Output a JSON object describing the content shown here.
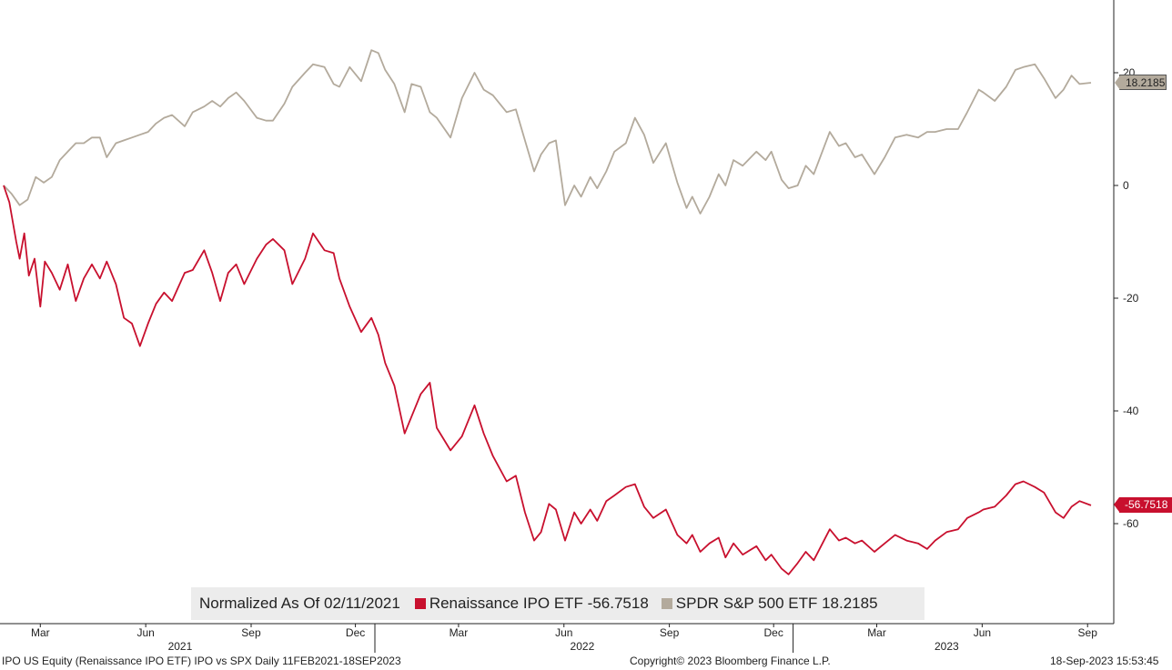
{
  "chart_data": {
    "type": "line",
    "title": "Normalized As Of 02/11/2021",
    "xlabel": "",
    "ylabel": "",
    "ylim": [
      -75,
      33
    ],
    "yticks": [
      20,
      0,
      -20,
      -40,
      -60
    ],
    "x_range": [
      "2021-02-11",
      "2023-09-18"
    ],
    "x_ticks": [
      {
        "label": "Mar",
        "date": "2021-03-15"
      },
      {
        "label": "Jun",
        "date": "2021-06-15"
      },
      {
        "label": "Sep",
        "date": "2021-09-15"
      },
      {
        "label": "Dec",
        "date": "2021-12-15"
      },
      {
        "label": "Mar",
        "date": "2022-03-15"
      },
      {
        "label": "Jun",
        "date": "2022-06-15"
      },
      {
        "label": "Sep",
        "date": "2022-09-15"
      },
      {
        "label": "Dec",
        "date": "2022-12-15"
      },
      {
        "label": "Mar",
        "date": "2023-03-15"
      },
      {
        "label": "Jun",
        "date": "2023-06-15"
      },
      {
        "label": "Sep",
        "date": "2023-09-15"
      }
    ],
    "year_labels": [
      {
        "label": "2021",
        "date": "2021-07-15"
      },
      {
        "label": "2022",
        "date": "2022-07-01"
      },
      {
        "label": "2023",
        "date": "2023-05-15"
      }
    ],
    "year_dividers": [
      "2022-01-01",
      "2023-01-01"
    ],
    "series": [
      {
        "name": "SPDR S&P 500 ETF",
        "color": "#b3aa9c",
        "last_value": "18.2185",
        "points": [
          [
            "2021-02-11",
            0
          ],
          [
            "2021-02-18",
            -1.5
          ],
          [
            "2021-02-25",
            -3.5
          ],
          [
            "2021-03-04",
            -2.5
          ],
          [
            "2021-03-11",
            1.5
          ],
          [
            "2021-03-18",
            0.5
          ],
          [
            "2021-03-25",
            1.5
          ],
          [
            "2021-04-01",
            4.5
          ],
          [
            "2021-04-08",
            6
          ],
          [
            "2021-04-15",
            7.5
          ],
          [
            "2021-04-22",
            7.5
          ],
          [
            "2021-04-29",
            8.5
          ],
          [
            "2021-05-06",
            8.5
          ],
          [
            "2021-05-12",
            5
          ],
          [
            "2021-05-20",
            7.5
          ],
          [
            "2021-05-27",
            8
          ],
          [
            "2021-06-03",
            8.5
          ],
          [
            "2021-06-10",
            9
          ],
          [
            "2021-06-17",
            9.5
          ],
          [
            "2021-06-24",
            11
          ],
          [
            "2021-07-01",
            12
          ],
          [
            "2021-07-08",
            12.5
          ],
          [
            "2021-07-19",
            10.5
          ],
          [
            "2021-07-26",
            13
          ],
          [
            "2021-08-05",
            14
          ],
          [
            "2021-08-12",
            15
          ],
          [
            "2021-08-19",
            14
          ],
          [
            "2021-08-26",
            15.5
          ],
          [
            "2021-09-02",
            16.5
          ],
          [
            "2021-09-09",
            15
          ],
          [
            "2021-09-20",
            12
          ],
          [
            "2021-09-28",
            11.5
          ],
          [
            "2021-10-04",
            11.5
          ],
          [
            "2021-10-14",
            14.5
          ],
          [
            "2021-10-21",
            17.5
          ],
          [
            "2021-11-01",
            20
          ],
          [
            "2021-11-08",
            21.5
          ],
          [
            "2021-11-18",
            21
          ],
          [
            "2021-11-26",
            18
          ],
          [
            "2021-12-01",
            17.5
          ],
          [
            "2021-12-10",
            21
          ],
          [
            "2021-12-20",
            18.5
          ],
          [
            "2021-12-29",
            24
          ],
          [
            "2022-01-04",
            23.5
          ],
          [
            "2022-01-10",
            20.5
          ],
          [
            "2022-01-18",
            18
          ],
          [
            "2022-01-27",
            13
          ],
          [
            "2022-02-02",
            18
          ],
          [
            "2022-02-10",
            17.5
          ],
          [
            "2022-02-18",
            13
          ],
          [
            "2022-02-24",
            12
          ],
          [
            "2022-03-08",
            8.5
          ],
          [
            "2022-03-18",
            15.5
          ],
          [
            "2022-03-29",
            20
          ],
          [
            "2022-04-06",
            17
          ],
          [
            "2022-04-14",
            16
          ],
          [
            "2022-04-26",
            13
          ],
          [
            "2022-05-04",
            13.5
          ],
          [
            "2022-05-12",
            8
          ],
          [
            "2022-05-20",
            2.5
          ],
          [
            "2022-05-26",
            5.5
          ],
          [
            "2022-06-02",
            7.5
          ],
          [
            "2022-06-08",
            8
          ],
          [
            "2022-06-16",
            -3.5
          ],
          [
            "2022-06-24",
            0
          ],
          [
            "2022-06-30",
            -2
          ],
          [
            "2022-07-08",
            1.5
          ],
          [
            "2022-07-14",
            -0.5
          ],
          [
            "2022-07-22",
            2.5
          ],
          [
            "2022-07-29",
            6
          ],
          [
            "2022-08-08",
            7.5
          ],
          [
            "2022-08-16",
            12
          ],
          [
            "2022-08-24",
            9
          ],
          [
            "2022-09-01",
            4
          ],
          [
            "2022-09-12",
            7.5
          ],
          [
            "2022-09-22",
            0.5
          ],
          [
            "2022-09-30",
            -4
          ],
          [
            "2022-10-05",
            -2
          ],
          [
            "2022-10-12",
            -5
          ],
          [
            "2022-10-20",
            -2
          ],
          [
            "2022-10-28",
            2
          ],
          [
            "2022-11-03",
            0
          ],
          [
            "2022-11-10",
            4.5
          ],
          [
            "2022-11-18",
            3.5
          ],
          [
            "2022-11-30",
            6
          ],
          [
            "2022-12-08",
            4.5
          ],
          [
            "2022-12-13",
            6
          ],
          [
            "2022-12-22",
            1
          ],
          [
            "2022-12-28",
            -0.5
          ],
          [
            "2023-01-05",
            0
          ],
          [
            "2023-01-12",
            3.5
          ],
          [
            "2023-01-19",
            2
          ],
          [
            "2023-02-02",
            9.5
          ],
          [
            "2023-02-10",
            7
          ],
          [
            "2023-02-16",
            7.5
          ],
          [
            "2023-02-24",
            5
          ],
          [
            "2023-03-02",
            5.5
          ],
          [
            "2023-03-13",
            2
          ],
          [
            "2023-03-22",
            5
          ],
          [
            "2023-03-31",
            8.5
          ],
          [
            "2023-04-10",
            9
          ],
          [
            "2023-04-20",
            8.5
          ],
          [
            "2023-04-28",
            9.5
          ],
          [
            "2023-05-05",
            9.5
          ],
          [
            "2023-05-15",
            10
          ],
          [
            "2023-05-25",
            10
          ],
          [
            "2023-06-02",
            13
          ],
          [
            "2023-06-12",
            17
          ],
          [
            "2023-06-16",
            16.5
          ],
          [
            "2023-06-26",
            15
          ],
          [
            "2023-07-06",
            17.5
          ],
          [
            "2023-07-14",
            20.5
          ],
          [
            "2023-07-21",
            21
          ],
          [
            "2023-07-31",
            21.5
          ],
          [
            "2023-08-08",
            19
          ],
          [
            "2023-08-18",
            15.5
          ],
          [
            "2023-08-25",
            17
          ],
          [
            "2023-09-01",
            19.5
          ],
          [
            "2023-09-08",
            18
          ],
          [
            "2023-09-18",
            18.2185
          ]
        ]
      },
      {
        "name": "Renaissance IPO ETF",
        "color": "#c8102e",
        "last_value": "-56.7518",
        "points": [
          [
            "2021-02-11",
            0
          ],
          [
            "2021-02-16",
            -3
          ],
          [
            "2021-02-22",
            -10
          ],
          [
            "2021-02-25",
            -13
          ],
          [
            "2021-03-01",
            -8.5
          ],
          [
            "2021-03-05",
            -16
          ],
          [
            "2021-03-10",
            -13
          ],
          [
            "2021-03-15",
            -21.5
          ],
          [
            "2021-03-19",
            -13.5
          ],
          [
            "2021-03-25",
            -15.5
          ],
          [
            "2021-04-01",
            -18.5
          ],
          [
            "2021-04-08",
            -14
          ],
          [
            "2021-04-15",
            -20.5
          ],
          [
            "2021-04-22",
            -16.5
          ],
          [
            "2021-04-29",
            -14
          ],
          [
            "2021-05-06",
            -16.5
          ],
          [
            "2021-05-12",
            -13.5
          ],
          [
            "2021-05-20",
            -17.5
          ],
          [
            "2021-05-27",
            -23.5
          ],
          [
            "2021-06-03",
            -24.5
          ],
          [
            "2021-06-10",
            -28.5
          ],
          [
            "2021-06-17",
            -24.5
          ],
          [
            "2021-06-24",
            -21
          ],
          [
            "2021-07-01",
            -19
          ],
          [
            "2021-07-08",
            -20.5
          ],
          [
            "2021-07-19",
            -15.5
          ],
          [
            "2021-07-26",
            -15
          ],
          [
            "2021-08-05",
            -11.5
          ],
          [
            "2021-08-12",
            -15.5
          ],
          [
            "2021-08-19",
            -20.5
          ],
          [
            "2021-08-26",
            -15.5
          ],
          [
            "2021-09-02",
            -14
          ],
          [
            "2021-09-09",
            -17.5
          ],
          [
            "2021-09-20",
            -13
          ],
          [
            "2021-09-28",
            -10.5
          ],
          [
            "2021-10-04",
            -9.5
          ],
          [
            "2021-10-14",
            -11.5
          ],
          [
            "2021-10-21",
            -17.5
          ],
          [
            "2021-11-01",
            -13
          ],
          [
            "2021-11-08",
            -8.5
          ],
          [
            "2021-11-18",
            -11.5
          ],
          [
            "2021-11-26",
            -12
          ],
          [
            "2021-12-01",
            -16.5
          ],
          [
            "2021-12-10",
            -21.5
          ],
          [
            "2021-12-20",
            -26
          ],
          [
            "2021-12-29",
            -23.5
          ],
          [
            "2022-01-04",
            -26.5
          ],
          [
            "2022-01-10",
            -31.5
          ],
          [
            "2022-01-18",
            -35.5
          ],
          [
            "2022-01-27",
            -44
          ],
          [
            "2022-02-02",
            -41
          ],
          [
            "2022-02-10",
            -37
          ],
          [
            "2022-02-18",
            -35
          ],
          [
            "2022-02-24",
            -43
          ],
          [
            "2022-03-08",
            -47
          ],
          [
            "2022-03-18",
            -44.5
          ],
          [
            "2022-03-29",
            -39
          ],
          [
            "2022-04-06",
            -44
          ],
          [
            "2022-04-14",
            -48
          ],
          [
            "2022-04-26",
            -52.5
          ],
          [
            "2022-05-04",
            -51.5
          ],
          [
            "2022-05-12",
            -58
          ],
          [
            "2022-05-20",
            -63
          ],
          [
            "2022-05-26",
            -61.5
          ],
          [
            "2022-06-02",
            -56.5
          ],
          [
            "2022-06-08",
            -57.5
          ],
          [
            "2022-06-16",
            -63
          ],
          [
            "2022-06-24",
            -58
          ],
          [
            "2022-06-30",
            -60
          ],
          [
            "2022-07-08",
            -57.5
          ],
          [
            "2022-07-14",
            -59.5
          ],
          [
            "2022-07-22",
            -56
          ],
          [
            "2022-07-29",
            -55
          ],
          [
            "2022-08-08",
            -53.5
          ],
          [
            "2022-08-16",
            -53
          ],
          [
            "2022-08-24",
            -57
          ],
          [
            "2022-09-01",
            -59
          ],
          [
            "2022-09-12",
            -57.5
          ],
          [
            "2022-09-22",
            -62
          ],
          [
            "2022-09-30",
            -63.5
          ],
          [
            "2022-10-05",
            -62
          ],
          [
            "2022-10-12",
            -65
          ],
          [
            "2022-10-20",
            -63.5
          ],
          [
            "2022-10-28",
            -62.5
          ],
          [
            "2022-11-03",
            -66
          ],
          [
            "2022-11-10",
            -63.5
          ],
          [
            "2022-11-18",
            -65.5
          ],
          [
            "2022-11-30",
            -64
          ],
          [
            "2022-12-08",
            -66.5
          ],
          [
            "2022-12-13",
            -65.5
          ],
          [
            "2022-12-22",
            -68
          ],
          [
            "2022-12-28",
            -69
          ],
          [
            "2023-01-05",
            -67
          ],
          [
            "2023-01-12",
            -65
          ],
          [
            "2023-01-19",
            -66.5
          ],
          [
            "2023-02-02",
            -61
          ],
          [
            "2023-02-10",
            -63
          ],
          [
            "2023-02-16",
            -62.5
          ],
          [
            "2023-02-24",
            -63.5
          ],
          [
            "2023-03-02",
            -63
          ],
          [
            "2023-03-13",
            -65
          ],
          [
            "2023-03-22",
            -63.5
          ],
          [
            "2023-03-31",
            -62
          ],
          [
            "2023-04-10",
            -63
          ],
          [
            "2023-04-20",
            -63.5
          ],
          [
            "2023-04-28",
            -64.5
          ],
          [
            "2023-05-05",
            -63
          ],
          [
            "2023-05-15",
            -61.5
          ],
          [
            "2023-05-25",
            -61
          ],
          [
            "2023-06-02",
            -59
          ],
          [
            "2023-06-12",
            -58
          ],
          [
            "2023-06-16",
            -57.5
          ],
          [
            "2023-06-26",
            -57
          ],
          [
            "2023-07-06",
            -55
          ],
          [
            "2023-07-14",
            -53
          ],
          [
            "2023-07-21",
            -52.5
          ],
          [
            "2023-07-31",
            -53.5
          ],
          [
            "2023-08-08",
            -54.5
          ],
          [
            "2023-08-18",
            -58
          ],
          [
            "2023-08-25",
            -59
          ],
          [
            "2023-09-01",
            -57
          ],
          [
            "2023-09-08",
            -56
          ],
          [
            "2023-09-18",
            -56.7518
          ]
        ]
      }
    ]
  },
  "legend": {
    "title": "Normalized As Of 02/11/2021",
    "ipo_entry": "Renaissance IPO ETF -56.7518",
    "spx_entry": "SPDR S&P 500 ETF 18.2185"
  },
  "badges": {
    "spx": "18.2185",
    "ipo": "-56.7518"
  },
  "footer": {
    "left": "IPO US Equity (Renaissance IPO ETF) IPO vs SPX  Daily 11FEB2021-18SEP2023",
    "center": "Copyright© 2023 Bloomberg Finance L.P.",
    "right": "18-Sep-2023 15:53:45"
  },
  "colors": {
    "ipo": "#c8102e",
    "spx": "#b3aa9c",
    "legend_bg": "#ececec"
  }
}
